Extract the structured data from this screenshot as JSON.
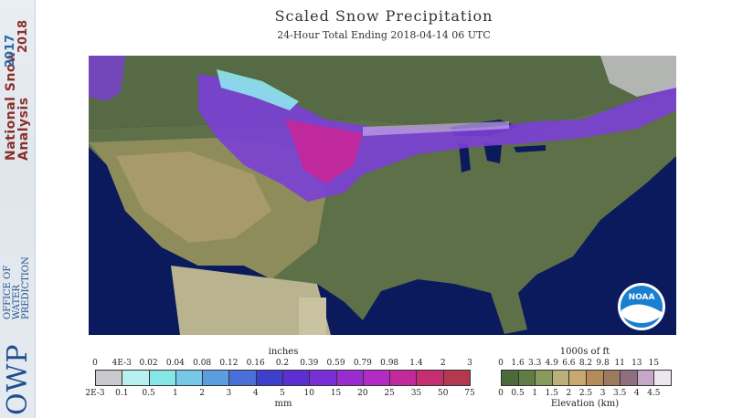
{
  "sidebar": {
    "title_line1": "National Snow",
    "title_line2": "Analysis",
    "years_line1": "2017",
    "years_line2": "2018",
    "logo": "OWP",
    "org_lines": [
      "OFFICE OF",
      "WATER",
      "PREDICTION"
    ]
  },
  "header": {
    "title": "Scaled Snow Precipitation",
    "subtitle": "24-Hour Total Ending 2018-04-14 06 UTC"
  },
  "map": {
    "badge": "NOAA",
    "colors": {
      "ocean": "#0a1a5c",
      "land": "#5d7048",
      "mexico": "#c9c3a1",
      "snow_magenta": "#c0299d",
      "snow_purple": "#7b3fd6",
      "snow_cyan": "#8fe6ef"
    }
  },
  "precip_legend": {
    "unit_top": "inches",
    "unit_bottom": "mm",
    "inches_labels": [
      "0",
      "4E-3",
      "0.02",
      "0.04",
      "0.08",
      "0.12",
      "0.16",
      "0.2",
      "0.39",
      "0.59",
      "0.79",
      "0.98",
      "1.4",
      "2",
      "3"
    ],
    "mm_labels": [
      "2E-3",
      "0.1",
      "0.5",
      "1",
      "2",
      "3",
      "4",
      "5",
      "10",
      "15",
      "20",
      "25",
      "35",
      "50",
      "75"
    ],
    "colors": [
      "#c9c8cc",
      "#b7f0ef",
      "#86e6e6",
      "#77c8e6",
      "#5a9de0",
      "#4a6fd8",
      "#3d3fcf",
      "#5b2fd0",
      "#7a2ed6",
      "#9a2ccf",
      "#b42ac4",
      "#c3289d",
      "#c72d73",
      "#b2394f"
    ]
  },
  "elev_legend": {
    "unit_top": "1000s of ft",
    "unit_bottom": "Elevation (km)",
    "ft_labels": [
      "0",
      "1.6",
      "3.3",
      "4.9",
      "6.6",
      "8.2",
      "9.8",
      "11",
      "13",
      "15"
    ],
    "km_labels": [
      "0",
      "0.5",
      "1",
      "1.5",
      "2",
      "2.5",
      "3",
      "3.5",
      "4",
      "4.5"
    ],
    "colors": [
      "#4a6a3a",
      "#5f7d45",
      "#8a9a5a",
      "#b9b07a",
      "#c7a86f",
      "#b58c58",
      "#9c7a5d",
      "#8e6f80",
      "#c7a7c9",
      "#ece6f0"
    ]
  }
}
